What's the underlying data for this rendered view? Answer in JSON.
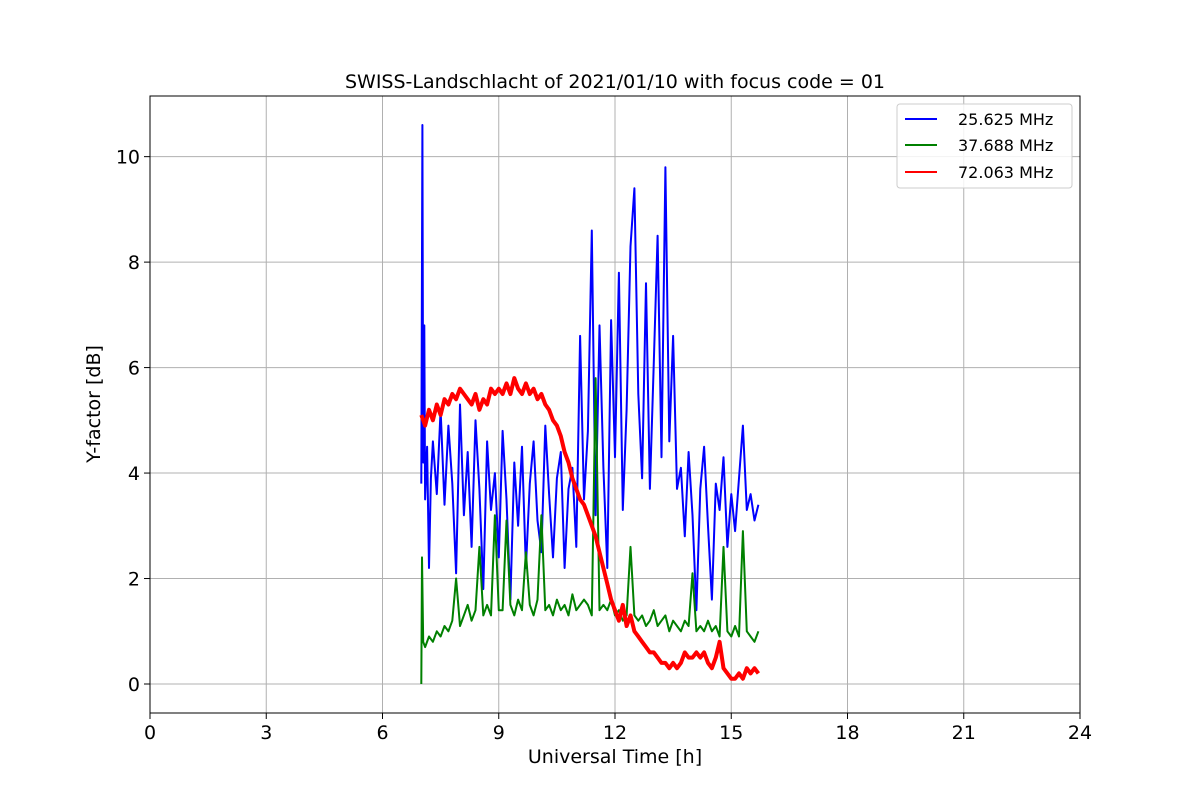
{
  "chart_data": {
    "type": "line",
    "title": "SWISS-Landschlacht of 2021/01/10 with focus code = 01",
    "xlabel": "Universal Time [h]",
    "ylabel": "Y-factor [dB]",
    "xlim": [
      0,
      24
    ],
    "ylim": [
      -0.55,
      11.15
    ],
    "xticks": [
      0,
      3,
      6,
      9,
      12,
      15,
      18,
      21,
      24
    ],
    "yticks": [
      0,
      2,
      4,
      6,
      8,
      10
    ],
    "grid": true,
    "legend_position": "top-right",
    "series": [
      {
        "name": "25.625 MHz",
        "color": "#0000ff",
        "x": [
          7.0,
          7.03,
          7.05,
          7.08,
          7.1,
          7.15,
          7.2,
          7.25,
          7.3,
          7.4,
          7.5,
          7.6,
          7.7,
          7.8,
          7.9,
          8.0,
          8.1,
          8.2,
          8.3,
          8.4,
          8.5,
          8.6,
          8.7,
          8.8,
          8.9,
          9.0,
          9.1,
          9.2,
          9.3,
          9.4,
          9.5,
          9.6,
          9.7,
          9.8,
          9.9,
          10.0,
          10.1,
          10.2,
          10.3,
          10.4,
          10.5,
          10.6,
          10.7,
          10.8,
          10.9,
          11.0,
          11.1,
          11.2,
          11.3,
          11.4,
          11.5,
          11.6,
          11.7,
          11.8,
          11.9,
          12.0,
          12.1,
          12.2,
          12.3,
          12.4,
          12.5,
          12.6,
          12.7,
          12.8,
          12.9,
          13.0,
          13.1,
          13.2,
          13.3,
          13.4,
          13.5,
          13.6,
          13.7,
          13.8,
          13.9,
          14.0,
          14.1,
          14.2,
          14.3,
          14.4,
          14.5,
          14.6,
          14.7,
          14.8,
          14.9,
          15.0,
          15.1,
          15.2,
          15.3,
          15.4,
          15.5,
          15.6,
          15.7
        ],
        "values": [
          3.8,
          10.6,
          4.2,
          6.8,
          3.5,
          4.5,
          2.2,
          3.9,
          4.6,
          3.6,
          5.2,
          3.4,
          4.9,
          3.8,
          2.1,
          5.3,
          3.2,
          4.4,
          2.6,
          5.0,
          3.7,
          1.8,
          4.6,
          3.3,
          4.0,
          2.4,
          4.8,
          3.5,
          1.6,
          4.2,
          3.0,
          4.5,
          2.2,
          3.8,
          4.6,
          3.1,
          2.5,
          4.9,
          3.6,
          2.4,
          3.9,
          4.4,
          2.2,
          3.7,
          4.1,
          2.6,
          6.6,
          3.5,
          4.8,
          8.6,
          3.2,
          6.8,
          4.1,
          2.2,
          6.9,
          4.3,
          7.8,
          3.3,
          5.2,
          8.3,
          9.4,
          5.5,
          3.9,
          7.6,
          3.7,
          6.1,
          8.5,
          4.3,
          9.8,
          4.6,
          6.6,
          3.7,
          4.1,
          2.8,
          4.4,
          3.2,
          1.4,
          3.7,
          4.5,
          3.0,
          1.6,
          3.8,
          3.3,
          4.3,
          2.6,
          3.6,
          2.9,
          3.9,
          4.9,
          3.3,
          3.6,
          3.1,
          3.4
        ]
      },
      {
        "name": "37.688 MHz",
        "color": "#008000",
        "x": [
          7.0,
          7.02,
          7.05,
          7.1,
          7.2,
          7.3,
          7.4,
          7.5,
          7.6,
          7.7,
          7.8,
          7.9,
          8.0,
          8.1,
          8.2,
          8.3,
          8.4,
          8.5,
          8.6,
          8.7,
          8.8,
          8.9,
          9.0,
          9.1,
          9.2,
          9.3,
          9.4,
          9.5,
          9.6,
          9.7,
          9.8,
          9.9,
          10.0,
          10.1,
          10.2,
          10.3,
          10.4,
          10.5,
          10.6,
          10.7,
          10.8,
          10.9,
          11.0,
          11.1,
          11.2,
          11.3,
          11.4,
          11.5,
          11.6,
          11.7,
          11.8,
          11.9,
          12.0,
          12.1,
          12.2,
          12.3,
          12.4,
          12.5,
          12.6,
          12.7,
          12.8,
          12.9,
          13.0,
          13.1,
          13.2,
          13.3,
          13.4,
          13.5,
          13.6,
          13.7,
          13.8,
          13.9,
          14.0,
          14.1,
          14.2,
          14.3,
          14.4,
          14.5,
          14.6,
          14.7,
          14.8,
          14.9,
          15.0,
          15.1,
          15.2,
          15.3,
          15.4,
          15.5,
          15.6,
          15.7
        ],
        "values": [
          0.0,
          2.4,
          0.8,
          0.7,
          0.9,
          0.8,
          1.0,
          0.9,
          1.1,
          1.0,
          1.2,
          2.0,
          1.1,
          1.3,
          1.5,
          1.2,
          1.4,
          2.6,
          1.3,
          1.5,
          1.3,
          3.2,
          1.4,
          1.4,
          3.1,
          1.5,
          1.3,
          1.6,
          1.4,
          2.5,
          1.5,
          1.3,
          1.6,
          3.2,
          1.4,
          1.5,
          1.3,
          1.6,
          1.4,
          1.5,
          1.3,
          1.7,
          1.4,
          1.5,
          1.6,
          1.5,
          1.3,
          5.8,
          1.4,
          1.5,
          1.4,
          1.6,
          1.3,
          1.4,
          1.2,
          1.3,
          2.6,
          1.3,
          1.2,
          1.3,
          1.1,
          1.2,
          1.4,
          1.1,
          1.2,
          1.3,
          1.0,
          1.2,
          1.1,
          1.0,
          1.2,
          1.1,
          2.1,
          1.0,
          1.1,
          1.0,
          1.2,
          1.0,
          1.1,
          0.9,
          2.6,
          1.0,
          0.9,
          1.1,
          0.9,
          2.9,
          1.0,
          0.9,
          0.8,
          1.0
        ]
      },
      {
        "name": "72.063 MHz",
        "color": "#ff0000",
        "x": [
          7.0,
          7.1,
          7.2,
          7.3,
          7.4,
          7.5,
          7.6,
          7.7,
          7.8,
          7.9,
          8.0,
          8.1,
          8.2,
          8.3,
          8.4,
          8.5,
          8.6,
          8.7,
          8.8,
          8.9,
          9.0,
          9.1,
          9.2,
          9.3,
          9.4,
          9.5,
          9.6,
          9.7,
          9.8,
          9.9,
          10.0,
          10.1,
          10.2,
          10.3,
          10.4,
          10.5,
          10.6,
          10.7,
          10.8,
          10.9,
          11.0,
          11.1,
          11.2,
          11.3,
          11.4,
          11.5,
          11.6,
          11.7,
          11.8,
          11.9,
          12.0,
          12.1,
          12.2,
          12.3,
          12.4,
          12.5,
          12.6,
          12.7,
          12.8,
          12.9,
          13.0,
          13.1,
          13.2,
          13.3,
          13.4,
          13.5,
          13.6,
          13.7,
          13.8,
          13.9,
          14.0,
          14.1,
          14.2,
          14.3,
          14.4,
          14.5,
          14.6,
          14.7,
          14.8,
          14.9,
          15.0,
          15.1,
          15.2,
          15.3,
          15.4,
          15.5,
          15.6,
          15.7
        ],
        "values": [
          5.1,
          4.9,
          5.2,
          5.0,
          5.3,
          5.1,
          5.4,
          5.3,
          5.5,
          5.4,
          5.6,
          5.5,
          5.4,
          5.3,
          5.5,
          5.2,
          5.4,
          5.3,
          5.6,
          5.5,
          5.6,
          5.5,
          5.7,
          5.5,
          5.8,
          5.6,
          5.5,
          5.7,
          5.5,
          5.6,
          5.4,
          5.5,
          5.3,
          5.2,
          5.0,
          4.9,
          4.7,
          4.4,
          4.2,
          3.9,
          3.7,
          3.5,
          3.4,
          3.2,
          3.0,
          2.8,
          2.5,
          2.2,
          1.9,
          1.6,
          1.4,
          1.2,
          1.5,
          1.1,
          1.3,
          1.0,
          0.9,
          0.8,
          0.7,
          0.6,
          0.6,
          0.5,
          0.4,
          0.4,
          0.3,
          0.4,
          0.3,
          0.4,
          0.6,
          0.5,
          0.5,
          0.6,
          0.5,
          0.6,
          0.4,
          0.3,
          0.5,
          0.8,
          0.3,
          0.2,
          0.1,
          0.1,
          0.2,
          0.1,
          0.3,
          0.2,
          0.3,
          0.2
        ]
      }
    ]
  }
}
